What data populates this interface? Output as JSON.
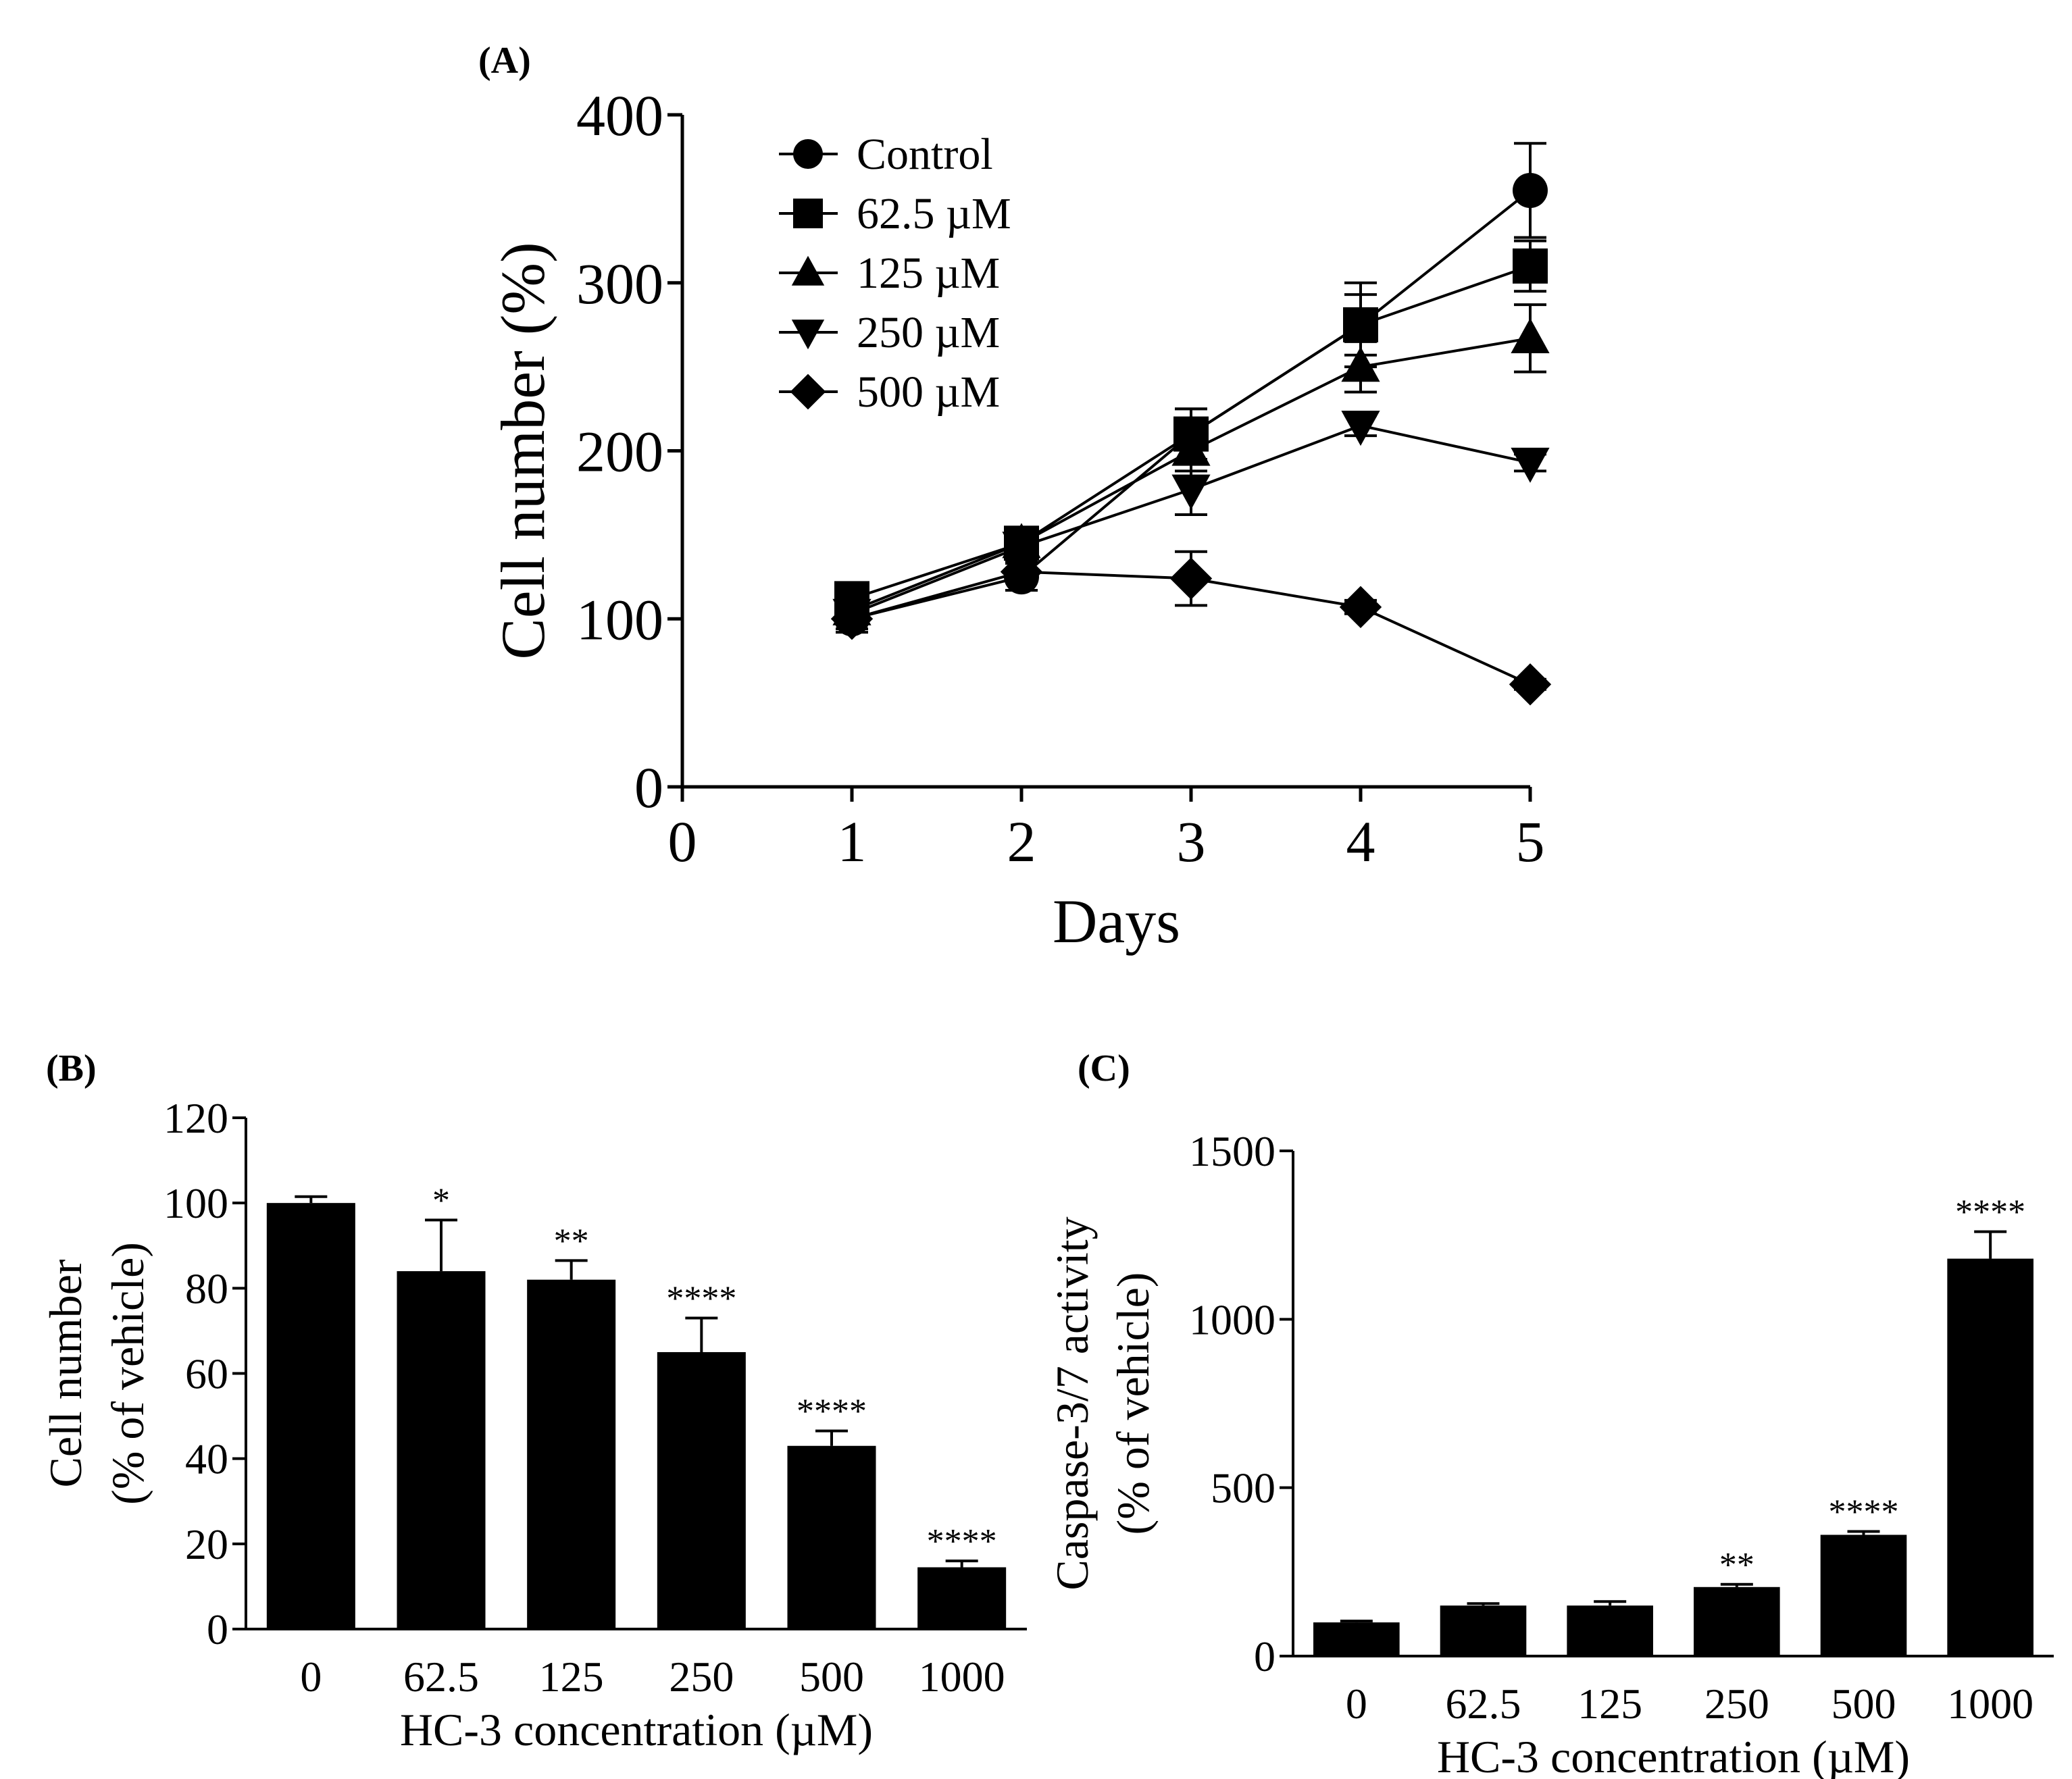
{
  "chart_data": [
    {
      "panel": "(A)",
      "type": "line",
      "xlabel": "Days",
      "ylabel": "Cell number (%)",
      "xlim": [
        0,
        5
      ],
      "ylim": [
        0,
        400
      ],
      "xticks": [
        "0",
        "1",
        "2",
        "3",
        "4",
        "5"
      ],
      "yticks": [
        "0",
        "100",
        "200",
        "300",
        "400"
      ],
      "legend_position": "top-left",
      "x": [
        1,
        2,
        3,
        4,
        5
      ],
      "series": [
        {
          "name": "Control",
          "marker": "circle",
          "values": [
            100,
            125,
            210,
            275,
            355
          ],
          "errors": [
            8,
            8,
            15,
            25,
            28
          ]
        },
        {
          "name": "62.5 µM",
          "marker": "square",
          "values": [
            112,
            145,
            210,
            275,
            310
          ],
          "errors": [
            5,
            8,
            15,
            18,
            15
          ]
        },
        {
          "name": "125 µM",
          "marker": "triangle-up",
          "values": [
            105,
            145,
            200,
            250,
            267
          ],
          "errors": [
            5,
            8,
            12,
            15,
            20
          ]
        },
        {
          "name": "250 µM",
          "marker": "triangle-down",
          "values": [
            103,
            143,
            177,
            215,
            193
          ],
          "errors": [
            5,
            6,
            15,
            6,
            5
          ]
        },
        {
          "name": "500 µM",
          "marker": "diamond",
          "values": [
            100,
            128,
            124,
            107,
            61
          ],
          "errors": [
            6,
            6,
            16,
            4,
            3
          ]
        }
      ]
    },
    {
      "panel": "(B)",
      "type": "bar",
      "xlabel": "HC-3 concentration (µM)",
      "ylabel_line1": "Cell number",
      "ylabel_line2": "(% of vehicle)",
      "ylim": [
        0,
        120
      ],
      "yticks": [
        "0",
        "20",
        "40",
        "60",
        "80",
        "100",
        "120"
      ],
      "categories": [
        "0",
        "62.5",
        "125",
        "250",
        "500",
        "1000"
      ],
      "values": [
        100,
        84,
        82,
        65,
        43,
        14.5
      ],
      "errors": [
        1.5,
        12,
        4.5,
        8,
        3.5,
        1.5
      ],
      "significance": [
        "",
        "*",
        "**",
        "****",
        "****",
        "****"
      ]
    },
    {
      "panel": "(C)",
      "type": "bar",
      "xlabel": "HC-3 concentration (µM)",
      "ylabel_line1": "Caspase-3/7 activity",
      "ylabel_line2": "(% of vehicle)",
      "ylim": [
        0,
        1500
      ],
      "yticks": [
        "0",
        "500",
        "1000",
        "1500"
      ],
      "categories": [
        "0",
        "62.5",
        "125",
        "250",
        "500",
        "1000"
      ],
      "values": [
        100,
        150,
        150,
        205,
        360,
        1180
      ],
      "errors": [
        4,
        6,
        12,
        8,
        10,
        80
      ],
      "significance": [
        "",
        "",
        "",
        "**",
        "****",
        "****"
      ]
    }
  ]
}
